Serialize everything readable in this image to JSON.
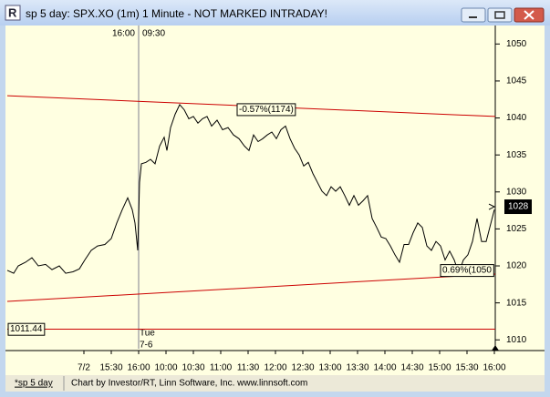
{
  "window": {
    "title": "sp 5 day: SPX.XO (1m) 1 Minute - NOT MARKED INTRADAY!",
    "tab": "*sp 5 day",
    "status": "Chart by Investor/RT, Linn Software, Inc. www.linnsoft.com"
  },
  "chart_data": {
    "type": "line",
    "color": "#000000",
    "x": [
      -84,
      -77,
      -72,
      -64,
      -57,
      -50,
      -42,
      -35,
      -27,
      -20,
      -12,
      -5,
      1,
      8,
      15,
      23,
      30,
      36,
      42,
      48,
      53,
      56,
      59,
      61,
      63,
      68,
      73,
      78,
      83,
      88,
      91,
      95,
      100,
      105,
      110,
      115,
      120,
      125,
      130,
      135,
      140,
      146,
      152,
      158,
      164,
      170,
      176,
      181,
      186,
      191,
      196,
      201,
      206,
      211,
      216,
      221,
      226,
      231,
      236,
      241,
      246,
      251,
      256,
      261,
      266,
      271,
      276,
      281,
      286,
      291,
      296,
      301,
      306,
      311,
      316,
      321,
      326,
      331,
      336,
      341,
      346,
      351,
      356,
      361,
      366,
      371,
      376,
      381,
      386,
      391,
      396,
      401,
      406,
      411,
      416,
      421,
      426,
      431,
      436,
      441,
      450
    ],
    "values": [
      1019.4,
      1019.0,
      1020.0,
      1020.5,
      1021.1,
      1020.0,
      1020.2,
      1019.5,
      1020.0,
      1019.0,
      1019.2,
      1019.6,
      1020.8,
      1022.1,
      1022.7,
      1022.9,
      1023.7,
      1025.8,
      1027.6,
      1029.2,
      1027.6,
      1025.8,
      1022.1,
      1031.3,
      1033.8,
      1034.0,
      1034.4,
      1033.8,
      1036.2,
      1037.4,
      1035.6,
      1038.7,
      1040.5,
      1041.8,
      1041.1,
      1039.9,
      1040.2,
      1039.3,
      1039.9,
      1040.2,
      1038.9,
      1039.7,
      1038.4,
      1038.7,
      1037.7,
      1037.2,
      1036.2,
      1035.6,
      1037.7,
      1036.8,
      1037.2,
      1037.7,
      1038.1,
      1037.2,
      1038.4,
      1038.9,
      1037.2,
      1035.9,
      1035.0,
      1033.5,
      1034.0,
      1032.5,
      1031.3,
      1030.1,
      1029.5,
      1030.7,
      1030.1,
      1030.7,
      1029.5,
      1028.2,
      1029.5,
      1028.2,
      1028.8,
      1029.5,
      1026.4,
      1025.2,
      1023.9,
      1023.7,
      1022.7,
      1021.5,
      1020.5,
      1022.9,
      1022.9,
      1024.5,
      1025.8,
      1025.2,
      1022.7,
      1022.1,
      1023.3,
      1022.7,
      1020.8,
      1022.0,
      1020.8,
      1019.0,
      1020.8,
      1021.5,
      1023.3,
      1026.4,
      1023.3,
      1023.3,
      1027.6
    ],
    "xlim": [
      -84,
      451
    ],
    "xticks": [
      {
        "value": 0,
        "label": "7/2"
      },
      {
        "value": 30,
        "label": "15:30"
      },
      {
        "value": 60,
        "label": "16:00"
      },
      {
        "value": 90,
        "label": "10:00"
      },
      {
        "value": 120,
        "label": "10:30"
      },
      {
        "value": 150,
        "label": "11:00"
      },
      {
        "value": 180,
        "label": "11:30"
      },
      {
        "value": 210,
        "label": "12:00"
      },
      {
        "value": 240,
        "label": "12:30"
      },
      {
        "value": 270,
        "label": "13:00"
      },
      {
        "value": 300,
        "label": "13:30"
      },
      {
        "value": 330,
        "label": "14:00"
      },
      {
        "value": 360,
        "label": "14:30"
      },
      {
        "value": 390,
        "label": "15:00"
      },
      {
        "value": 420,
        "label": "15:30"
      },
      {
        "value": 450,
        "label": "16:00"
      }
    ],
    "ylim": [
      1008.8,
      1052.5
    ],
    "yticks": [
      1010,
      1015,
      1020,
      1025,
      1030,
      1035,
      1040,
      1045,
      1050
    ],
    "last_value": 1028,
    "level": 1011.44,
    "level_color": "#cc0000",
    "trendlines": [
      {
        "x": [
          -84,
          451
        ],
        "y": [
          1043.0,
          1040.2
        ],
        "color": "#cc0000",
        "label": "-0.57%(1174)"
      },
      {
        "x": [
          -84,
          451
        ],
        "y": [
          1015.2,
          1018.9
        ],
        "color": "#cc0000",
        "label": "0.69%(1050"
      }
    ],
    "session_break": {
      "x": 60,
      "left_label": "16:00",
      "right_label": "09:30",
      "day": "Tue",
      "date": "7-6"
    }
  }
}
